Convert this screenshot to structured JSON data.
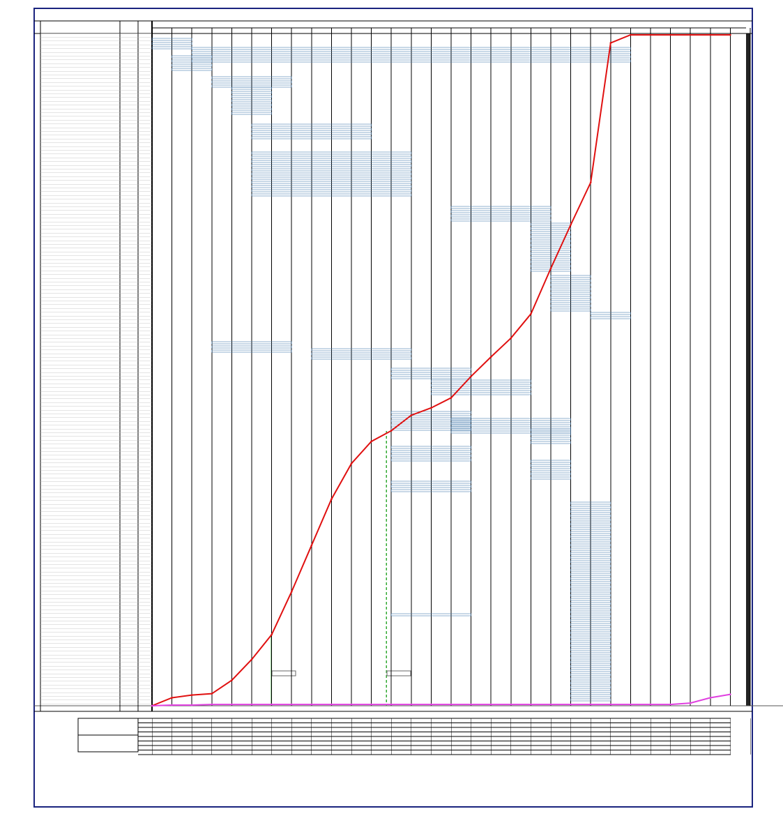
{
  "chart_data": {
    "type": "line",
    "categories": [
      null,
      null,
      null,
      null,
      null,
      null,
      null,
      null,
      null,
      null,
      null,
      null,
      null,
      null,
      null,
      null,
      null,
      null,
      null,
      null,
      null,
      null,
      null,
      null,
      null,
      null,
      null,
      null,
      null,
      null
    ],
    "ylim": [
      0,
      100
    ],
    "series": [
      {
        "color": "#e01010",
        "values": [
          0,
          1.2,
          1.6,
          1.8,
          3.8,
          6.9,
          10.6,
          17.0,
          23.9,
          30.8,
          36.1,
          39.4,
          41.0,
          43.3,
          44.4,
          45.9,
          49.1,
          52.0,
          54.8,
          58.4,
          65.2,
          71.7,
          78.0,
          98.8,
          100,
          100,
          100,
          100,
          100,
          100
        ]
      },
      {
        "color": "#e040e0",
        "values": [
          0,
          0.1,
          0.1,
          0.2,
          0.2,
          0.2,
          0.2,
          0.2,
          0.2,
          0.2,
          0.2,
          0.2,
          0.2,
          0.2,
          0.2,
          0.2,
          0.2,
          0.2,
          0.2,
          0.2,
          0.2,
          0.2,
          0.2,
          0.2,
          0.2,
          0.2,
          0.2,
          0.4,
          1.2,
          1.7
        ]
      }
    ]
  }
}
